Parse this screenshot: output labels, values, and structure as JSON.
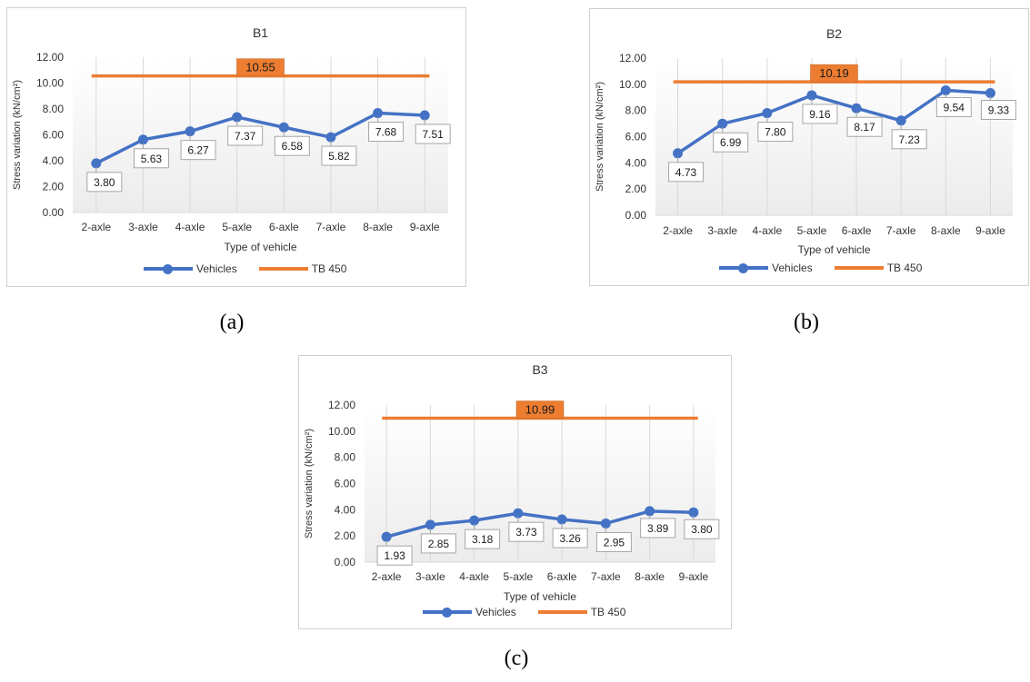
{
  "colors": {
    "vehicles": "#4472c4",
    "tb": "#ed7d31",
    "grid": "#d9d9d9",
    "text": "#333333",
    "label_border": "#a6a6a6"
  },
  "captions": [
    "(a)",
    "(b)",
    "(c)"
  ],
  "chart_data": [
    {
      "type": "line",
      "title": "B1",
      "xlabel": "Type of vehicle",
      "ylabel": "Stress variation (kN/cm²)",
      "ylim": [
        0,
        12
      ],
      "yticks": [
        "0.00",
        "2.00",
        "4.00",
        "6.00",
        "8.00",
        "10.00",
        "12.00"
      ],
      "categories": [
        "2-axle",
        "3-axle",
        "4-axle",
        "5-axle",
        "6-axle",
        "7-axle",
        "8-axle",
        "9-axle"
      ],
      "series": [
        {
          "name": "Vehicles",
          "values": [
            3.8,
            5.63,
            6.27,
            7.37,
            6.58,
            5.82,
            7.68,
            7.51
          ],
          "labels": [
            "3.80",
            "5.63",
            "6.27",
            "7.37",
            "6.58",
            "5.82",
            "7.68",
            "7.51"
          ]
        },
        {
          "name": "TB 450",
          "value": 10.55,
          "label": "10.55"
        }
      ],
      "legend": "bottom",
      "grid": "vertical"
    },
    {
      "type": "line",
      "title": "B2",
      "xlabel": "Type of vehicle",
      "ylabel": "Stress variation (kN/cm²)",
      "ylim": [
        0,
        12
      ],
      "yticks": [
        "0.00",
        "2.00",
        "4.00",
        "6.00",
        "8.00",
        "10.00",
        "12.00"
      ],
      "categories": [
        "2-axle",
        "3-axle",
        "4-axle",
        "5-axle",
        "6-axle",
        "7-axle",
        "8-axle",
        "9-axle"
      ],
      "series": [
        {
          "name": "Vehicles",
          "values": [
            4.73,
            6.99,
            7.8,
            9.16,
            8.17,
            7.23,
            9.54,
            9.33
          ],
          "labels": [
            "4.73",
            "6.99",
            "7.80",
            "9.16",
            "8.17",
            "7.23",
            "9.54",
            "9.33"
          ]
        },
        {
          "name": "TB 450",
          "value": 10.19,
          "label": "10.19"
        }
      ],
      "legend": "bottom",
      "grid": "vertical"
    },
    {
      "type": "line",
      "title": "B3",
      "xlabel": "Type of vehicle",
      "ylabel": "Stress variation (kN/cm²)",
      "ylim": [
        0,
        12
      ],
      "yticks": [
        "0.00",
        "2.00",
        "4.00",
        "6.00",
        "8.00",
        "10.00",
        "12.00"
      ],
      "categories": [
        "2-axle",
        "3-axle",
        "4-axle",
        "5-axle",
        "6-axle",
        "7-axle",
        "8-axle",
        "9-axle"
      ],
      "series": [
        {
          "name": "Vehicles",
          "values": [
            1.93,
            2.85,
            3.18,
            3.73,
            3.26,
            2.95,
            3.89,
            3.8
          ],
          "labels": [
            "1.93",
            "2.85",
            "3.18",
            "3.73",
            "3.26",
            "2.95",
            "3.89",
            "3.80"
          ]
        },
        {
          "name": "TB 450",
          "value": 10.99,
          "label": "10.99"
        }
      ],
      "legend": "bottom",
      "grid": "vertical"
    }
  ]
}
